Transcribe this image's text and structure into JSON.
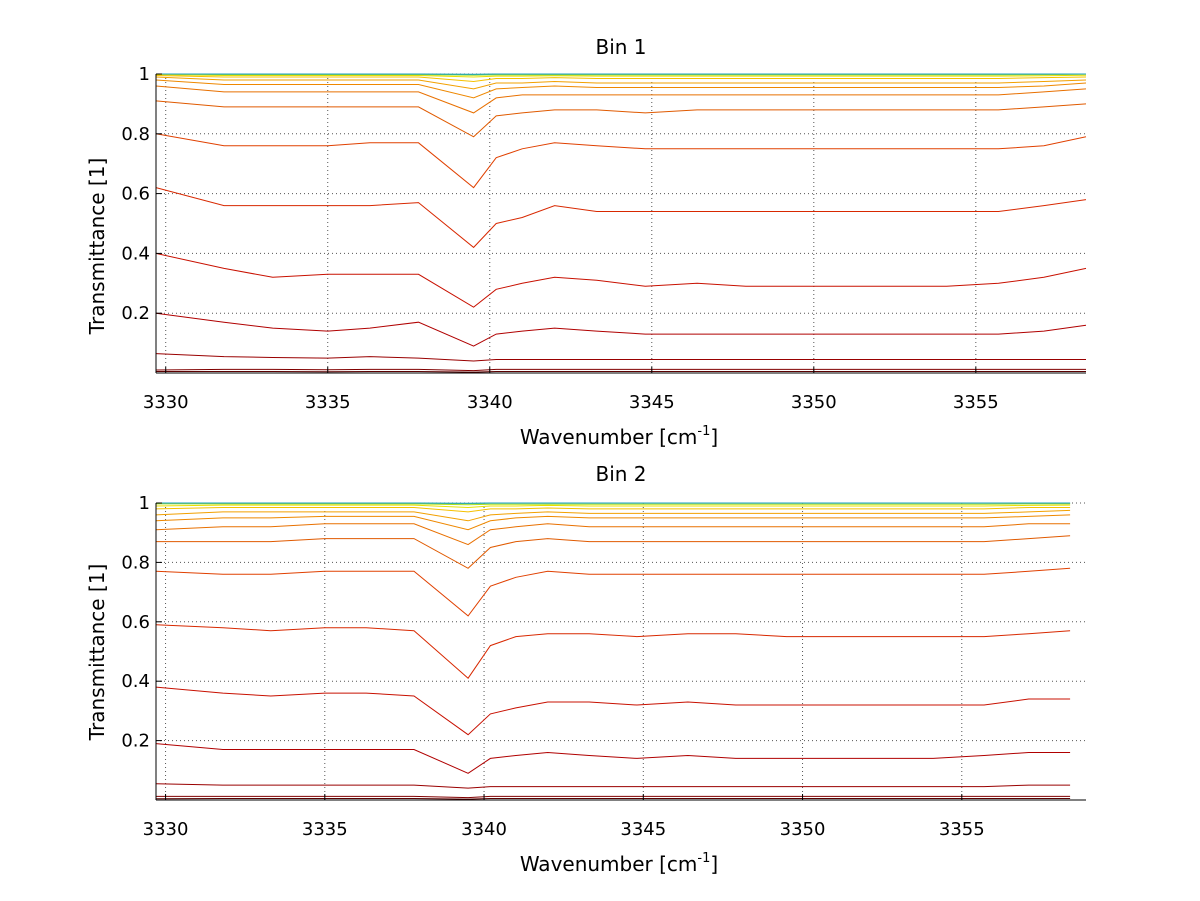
{
  "chart_data": [
    {
      "type": "line",
      "title": "Bin 1",
      "xlabel": "Wavenumber [cm",
      "xlabel_sup": "-1",
      "xlabel_end": "]",
      "ylabel": "Transmittance [1]",
      "xlim": [
        3329.7,
        3358.4
      ],
      "ylim": [
        0.0,
        1.0
      ],
      "xticks": [
        3330,
        3335,
        3340,
        3345,
        3350,
        3355
      ],
      "xtick_labels": [
        "3330",
        "3335",
        "3340",
        "3345",
        "3350",
        "3355"
      ],
      "yticks": [
        0.2,
        0.4,
        0.6,
        0.8,
        1.0
      ],
      "ytick_labels": [
        "0.2",
        "0.4",
        "0.6",
        "0.8",
        "1"
      ],
      "grid": true,
      "line_x": [
        3329.7,
        3331.8,
        3333.3,
        3335.0,
        3336.3,
        3337.8,
        3339.5,
        3340.2,
        3341.0,
        3342.0,
        3343.3,
        3344.8,
        3346.4,
        3347.9,
        3349.5,
        3351.0,
        3352.6,
        3354.1,
        3355.7,
        3357.1,
        3358.4
      ],
      "series": [
        {
          "color": "#5a0000",
          "values": [
            0.005,
            0.005,
            0.005,
            0.004,
            0.005,
            0.005,
            0.003,
            0.005,
            0.005,
            0.005,
            0.005,
            0.005,
            0.005,
            0.005,
            0.005,
            0.005,
            0.005,
            0.005,
            0.005,
            0.005,
            0.005
          ]
        },
        {
          "color": "#800000",
          "values": [
            0.01,
            0.012,
            0.012,
            0.011,
            0.012,
            0.012,
            0.008,
            0.012,
            0.012,
            0.012,
            0.012,
            0.012,
            0.012,
            0.012,
            0.012,
            0.012,
            0.012,
            0.012,
            0.012,
            0.012,
            0.012
          ]
        },
        {
          "color": "#990000",
          "values": [
            0.065,
            0.055,
            0.052,
            0.05,
            0.055,
            0.05,
            0.04,
            0.045,
            0.045,
            0.045,
            0.045,
            0.045,
            0.045,
            0.045,
            0.045,
            0.045,
            0.045,
            0.045,
            0.045,
            0.045,
            0.045
          ]
        },
        {
          "color": "#b00000",
          "values": [
            0.2,
            0.17,
            0.15,
            0.14,
            0.15,
            0.17,
            0.09,
            0.13,
            0.14,
            0.15,
            0.14,
            0.13,
            0.13,
            0.13,
            0.13,
            0.13,
            0.13,
            0.13,
            0.13,
            0.14,
            0.16
          ]
        },
        {
          "color": "#c81000",
          "values": [
            0.4,
            0.35,
            0.32,
            0.33,
            0.33,
            0.33,
            0.22,
            0.28,
            0.3,
            0.32,
            0.31,
            0.29,
            0.3,
            0.29,
            0.29,
            0.29,
            0.29,
            0.29,
            0.3,
            0.32,
            0.35
          ]
        },
        {
          "color": "#d82800",
          "values": [
            0.62,
            0.56,
            0.56,
            0.56,
            0.56,
            0.57,
            0.42,
            0.5,
            0.52,
            0.56,
            0.54,
            0.54,
            0.54,
            0.54,
            0.54,
            0.54,
            0.54,
            0.54,
            0.54,
            0.56,
            0.58
          ]
        },
        {
          "color": "#e04000",
          "values": [
            0.8,
            0.76,
            0.76,
            0.76,
            0.77,
            0.77,
            0.62,
            0.72,
            0.75,
            0.77,
            0.76,
            0.75,
            0.75,
            0.75,
            0.75,
            0.75,
            0.75,
            0.75,
            0.75,
            0.76,
            0.79
          ]
        },
        {
          "color": "#e05a00",
          "values": [
            0.91,
            0.89,
            0.89,
            0.89,
            0.89,
            0.89,
            0.79,
            0.86,
            0.87,
            0.88,
            0.88,
            0.87,
            0.88,
            0.88,
            0.88,
            0.88,
            0.88,
            0.88,
            0.88,
            0.89,
            0.9
          ]
        },
        {
          "color": "#e87000",
          "values": [
            0.96,
            0.94,
            0.94,
            0.94,
            0.94,
            0.94,
            0.87,
            0.92,
            0.93,
            0.93,
            0.93,
            0.93,
            0.93,
            0.93,
            0.93,
            0.93,
            0.93,
            0.93,
            0.93,
            0.94,
            0.95
          ]
        },
        {
          "color": "#ee8800",
          "values": [
            0.98,
            0.965,
            0.965,
            0.965,
            0.965,
            0.965,
            0.92,
            0.95,
            0.955,
            0.96,
            0.955,
            0.955,
            0.955,
            0.955,
            0.955,
            0.955,
            0.955,
            0.955,
            0.955,
            0.96,
            0.97
          ]
        },
        {
          "color": "#f2a000",
          "values": [
            0.99,
            0.98,
            0.98,
            0.98,
            0.98,
            0.98,
            0.95,
            0.97,
            0.97,
            0.975,
            0.97,
            0.97,
            0.97,
            0.97,
            0.97,
            0.97,
            0.97,
            0.97,
            0.97,
            0.975,
            0.98
          ]
        },
        {
          "color": "#f5c000",
          "values": [
            0.995,
            0.99,
            0.99,
            0.99,
            0.99,
            0.99,
            0.975,
            0.985,
            0.985,
            0.988,
            0.985,
            0.985,
            0.985,
            0.985,
            0.985,
            0.985,
            0.985,
            0.985,
            0.985,
            0.988,
            0.99
          ]
        },
        {
          "color": "#e8e000",
          "values": [
            0.998,
            0.995,
            0.995,
            0.995,
            0.995,
            0.995,
            0.99,
            0.993,
            0.993,
            0.994,
            0.993,
            0.993,
            0.993,
            0.993,
            0.993,
            0.993,
            0.993,
            0.993,
            0.993,
            0.994,
            0.996
          ]
        },
        {
          "color": "#b0e020",
          "values": [
            1.0,
            0.998,
            0.998,
            0.998,
            0.998,
            0.998,
            0.996,
            0.997,
            0.997,
            0.997,
            0.997,
            0.997,
            0.997,
            0.997,
            0.997,
            0.997,
            0.997,
            0.997,
            0.997,
            0.998,
            0.999
          ]
        },
        {
          "color": "#60d060",
          "values": [
            1.0,
            0.999,
            0.999,
            0.999,
            0.999,
            0.999,
            0.998,
            0.999,
            0.999,
            0.999,
            0.999,
            0.999,
            0.999,
            0.999,
            0.999,
            0.999,
            0.999,
            0.999,
            0.999,
            0.999,
            1.0
          ]
        },
        {
          "color": "#20a0c0",
          "values": [
            1.0,
            1.0,
            1.0,
            1.0,
            1.0,
            1.0,
            0.999,
            1.0,
            1.0,
            1.0,
            1.0,
            1.0,
            1.0,
            1.0,
            1.0,
            1.0,
            1.0,
            1.0,
            1.0,
            1.0,
            1.0
          ]
        }
      ]
    },
    {
      "type": "line",
      "title": "Bin 2",
      "xlabel": "Wavenumber [cm",
      "xlabel_sup": "-1",
      "xlabel_end": "]",
      "ylabel": "Transmittance [1]",
      "xlim": [
        3329.7,
        3358.9
      ],
      "ylim": [
        0.0,
        1.0
      ],
      "xticks": [
        3330,
        3335,
        3340,
        3345,
        3350,
        3355
      ],
      "xtick_labels": [
        "3330",
        "3335",
        "3340",
        "3345",
        "3350",
        "3355"
      ],
      "yticks": [
        0.2,
        0.4,
        0.6,
        0.8,
        1.0
      ],
      "ytick_labels": [
        "0.2",
        "0.4",
        "0.6",
        "0.8",
        "1"
      ],
      "grid": true,
      "line_x": [
        3329.7,
        3331.8,
        3333.3,
        3335.0,
        3336.3,
        3337.8,
        3339.5,
        3340.2,
        3341.0,
        3342.0,
        3343.3,
        3344.8,
        3346.4,
        3347.9,
        3349.5,
        3351.0,
        3352.6,
        3354.1,
        3355.7,
        3357.1,
        3358.4
      ],
      "series": [
        {
          "color": "#5a0000",
          "values": [
            0.004,
            0.005,
            0.005,
            0.005,
            0.005,
            0.005,
            0.003,
            0.005,
            0.005,
            0.005,
            0.005,
            0.005,
            0.005,
            0.005,
            0.005,
            0.005,
            0.005,
            0.005,
            0.005,
            0.005,
            0.005
          ]
        },
        {
          "color": "#800000",
          "values": [
            0.012,
            0.012,
            0.012,
            0.012,
            0.012,
            0.012,
            0.008,
            0.012,
            0.012,
            0.012,
            0.012,
            0.012,
            0.012,
            0.012,
            0.012,
            0.012,
            0.012,
            0.012,
            0.012,
            0.012,
            0.012
          ]
        },
        {
          "color": "#990000",
          "values": [
            0.055,
            0.05,
            0.05,
            0.05,
            0.05,
            0.05,
            0.04,
            0.045,
            0.045,
            0.045,
            0.045,
            0.045,
            0.045,
            0.045,
            0.045,
            0.045,
            0.045,
            0.045,
            0.045,
            0.05,
            0.05
          ]
        },
        {
          "color": "#b00000",
          "values": [
            0.19,
            0.17,
            0.17,
            0.17,
            0.17,
            0.17,
            0.09,
            0.14,
            0.15,
            0.16,
            0.15,
            0.14,
            0.15,
            0.14,
            0.14,
            0.14,
            0.14,
            0.14,
            0.15,
            0.16,
            0.16
          ]
        },
        {
          "color": "#c81000",
          "values": [
            0.38,
            0.36,
            0.35,
            0.36,
            0.36,
            0.35,
            0.22,
            0.29,
            0.31,
            0.33,
            0.33,
            0.32,
            0.33,
            0.32,
            0.32,
            0.32,
            0.32,
            0.32,
            0.32,
            0.34,
            0.34
          ]
        },
        {
          "color": "#d82800",
          "values": [
            0.59,
            0.58,
            0.57,
            0.58,
            0.58,
            0.57,
            0.41,
            0.52,
            0.55,
            0.56,
            0.56,
            0.55,
            0.56,
            0.56,
            0.55,
            0.55,
            0.55,
            0.55,
            0.55,
            0.56,
            0.57
          ]
        },
        {
          "color": "#e04000",
          "values": [
            0.77,
            0.76,
            0.76,
            0.77,
            0.77,
            0.77,
            0.62,
            0.72,
            0.75,
            0.77,
            0.76,
            0.76,
            0.76,
            0.76,
            0.76,
            0.76,
            0.76,
            0.76,
            0.76,
            0.77,
            0.78
          ]
        },
        {
          "color": "#e05a00",
          "values": [
            0.87,
            0.87,
            0.87,
            0.88,
            0.88,
            0.88,
            0.78,
            0.85,
            0.87,
            0.88,
            0.87,
            0.87,
            0.87,
            0.87,
            0.87,
            0.87,
            0.87,
            0.87,
            0.87,
            0.88,
            0.89
          ]
        },
        {
          "color": "#e87000",
          "values": [
            0.91,
            0.92,
            0.92,
            0.93,
            0.93,
            0.93,
            0.86,
            0.91,
            0.92,
            0.93,
            0.92,
            0.92,
            0.92,
            0.92,
            0.92,
            0.92,
            0.92,
            0.92,
            0.92,
            0.93,
            0.93
          ]
        },
        {
          "color": "#ee8800",
          "values": [
            0.94,
            0.95,
            0.95,
            0.955,
            0.955,
            0.955,
            0.91,
            0.94,
            0.95,
            0.955,
            0.95,
            0.95,
            0.95,
            0.95,
            0.95,
            0.95,
            0.95,
            0.95,
            0.95,
            0.955,
            0.96
          ]
        },
        {
          "color": "#f2a000",
          "values": [
            0.96,
            0.97,
            0.97,
            0.97,
            0.97,
            0.97,
            0.94,
            0.96,
            0.965,
            0.97,
            0.965,
            0.965,
            0.965,
            0.965,
            0.965,
            0.965,
            0.965,
            0.965,
            0.965,
            0.97,
            0.975
          ]
        },
        {
          "color": "#f5c000",
          "values": [
            0.98,
            0.985,
            0.985,
            0.985,
            0.985,
            0.985,
            0.97,
            0.98,
            0.98,
            0.983,
            0.98,
            0.98,
            0.98,
            0.98,
            0.98,
            0.98,
            0.98,
            0.98,
            0.98,
            0.985,
            0.985
          ]
        },
        {
          "color": "#e8e000",
          "values": [
            0.99,
            0.993,
            0.993,
            0.993,
            0.993,
            0.993,
            0.985,
            0.99,
            0.99,
            0.992,
            0.99,
            0.99,
            0.99,
            0.99,
            0.99,
            0.99,
            0.99,
            0.99,
            0.99,
            0.992,
            0.993
          ]
        },
        {
          "color": "#b0e020",
          "values": [
            0.997,
            0.997,
            0.997,
            0.997,
            0.997,
            0.997,
            0.994,
            0.996,
            0.996,
            0.996,
            0.996,
            0.996,
            0.996,
            0.996,
            0.996,
            0.996,
            0.996,
            0.996,
            0.996,
            0.997,
            0.997
          ]
        },
        {
          "color": "#60d060",
          "values": [
            0.999,
            0.999,
            0.999,
            0.999,
            0.999,
            0.999,
            0.998,
            0.999,
            0.999,
            0.999,
            0.999,
            0.999,
            0.999,
            0.999,
            0.999,
            0.999,
            0.999,
            0.999,
            0.999,
            0.999,
            0.999
          ]
        },
        {
          "color": "#20a0c0",
          "values": [
            1.0,
            1.0,
            1.0,
            1.0,
            1.0,
            1.0,
            0.999,
            1.0,
            1.0,
            1.0,
            1.0,
            1.0,
            1.0,
            1.0,
            1.0,
            1.0,
            1.0,
            1.0,
            1.0,
            1.0,
            1.0
          ]
        }
      ]
    }
  ]
}
